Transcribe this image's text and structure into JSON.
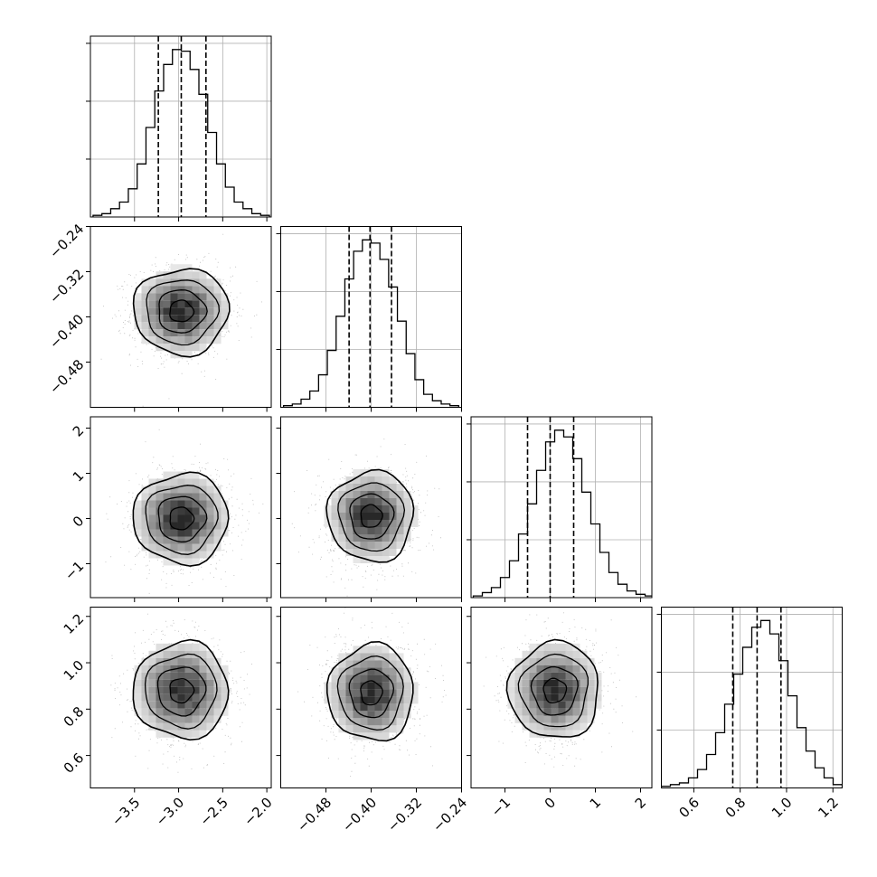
{
  "chart_data": {
    "type": "corner",
    "title": "",
    "n_params": 4,
    "parameters": [
      {
        "range": [
          -4.0,
          -1.95
        ],
        "ticks": [
          -3.5,
          -3.0,
          -2.5,
          -2.0
        ],
        "tick_labels": [
          "−3.5",
          "−3.0",
          "−2.5",
          "−2.0"
        ],
        "median": -2.97,
        "q16": -3.23,
        "q84": -2.69,
        "sigma": 0.27
      },
      {
        "range": [
          -0.56,
          -0.24
        ],
        "ticks": [
          -0.48,
          -0.4,
          -0.32,
          -0.24
        ],
        "tick_labels": [
          "−0.48",
          "−0.40",
          "−0.32",
          "−0.24"
        ],
        "median": -0.402,
        "q16": -0.439,
        "q84": -0.364,
        "sigma": 0.038
      },
      {
        "range": [
          -1.75,
          2.25
        ],
        "ticks": [
          -1,
          0,
          1,
          2
        ],
        "tick_labels": [
          "−1",
          "0",
          "1",
          "2"
        ],
        "median": 0.0,
        "q16": -0.5,
        "q84": 0.52,
        "sigma": 0.5
      },
      {
        "range": [
          0.46,
          1.24
        ],
        "ticks": [
          0.6,
          0.8,
          1.0,
          1.2
        ],
        "tick_labels": [
          "0.6",
          "0.8",
          "1.0",
          "1.2"
        ],
        "median": 0.873,
        "q16": 0.768,
        "q84": 0.976,
        "sigma": 0.104
      }
    ],
    "histograms": [
      {
        "edges": [
          -3.97,
          -3.87,
          -3.77,
          -3.67,
          -3.57,
          -3.47,
          -3.37,
          -3.27,
          -3.17,
          -3.07,
          -2.97,
          -2.87,
          -2.77,
          -2.67,
          -2.57,
          -2.47,
          -2.37,
          -2.27,
          -2.17,
          -2.07,
          -1.97
        ],
        "counts": [
          1,
          2,
          5,
          9,
          17,
          32,
          54,
          76,
          92,
          101,
          100,
          89,
          74,
          51,
          32,
          18,
          9,
          5,
          2,
          1
        ]
      },
      {
        "edges": [
          -0.555,
          -0.5395,
          -0.524,
          -0.5085,
          -0.493,
          -0.4775,
          -0.462,
          -0.4465,
          -0.431,
          -0.4155,
          -0.4,
          -0.3845,
          -0.369,
          -0.3535,
          -0.338,
          -0.3225,
          -0.307,
          -0.2915,
          -0.276,
          -0.2605,
          -0.245
        ],
        "counts": [
          1,
          2,
          5,
          10,
          20,
          35,
          56,
          79,
          96,
          103,
          101,
          91,
          74,
          53,
          33,
          17,
          8,
          4,
          2,
          1
        ]
      },
      {
        "edges": [
          -1.7,
          -1.5,
          -1.3,
          -1.1,
          -0.9,
          -0.7,
          -0.5,
          -0.3,
          -0.1,
          0.1,
          0.3,
          0.5,
          0.7,
          0.9,
          1.1,
          1.3,
          1.5,
          1.7,
          1.9,
          2.1,
          2.3
        ],
        "counts": [
          1,
          3,
          6,
          12,
          22,
          38,
          56,
          76,
          93,
          100,
          96,
          83,
          63,
          44,
          27,
          15,
          8,
          4,
          2,
          1
        ]
      },
      {
        "edges": [
          0.46,
          0.499,
          0.538,
          0.577,
          0.616,
          0.655,
          0.694,
          0.733,
          0.772,
          0.811,
          0.85,
          0.889,
          0.928,
          0.967,
          1.006,
          1.045,
          1.084,
          1.123,
          1.162,
          1.201,
          1.24
        ],
        "counts": [
          1,
          2,
          3,
          6,
          11,
          20,
          33,
          50,
          68,
          84,
          96,
          100,
          92,
          76,
          55,
          36,
          22,
          12,
          6,
          2
        ]
      }
    ],
    "pair_centers": [
      {
        "i": 1,
        "j": 0,
        "x": -2.97,
        "y": -0.39
      },
      {
        "i": 2,
        "j": 0,
        "x": -2.97,
        "y": 0.0
      },
      {
        "i": 2,
        "j": 1,
        "x": -0.4,
        "y": 0.05
      },
      {
        "i": 3,
        "j": 0,
        "x": -2.97,
        "y": 0.88
      },
      {
        "i": 3,
        "j": 1,
        "x": -0.4,
        "y": 0.87
      },
      {
        "i": 3,
        "j": 2,
        "x": 0.1,
        "y": 0.88
      }
    ],
    "contour_levels_sigma": [
      0.5,
      1.0,
      1.5,
      2.0
    ],
    "grid": true,
    "quantile_lines": "dashed",
    "colors": {
      "line": "#000000",
      "grid": "#b0b0b0",
      "points": "#bdbdbd"
    }
  }
}
